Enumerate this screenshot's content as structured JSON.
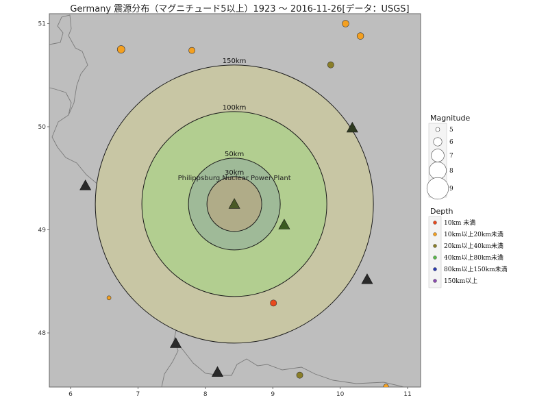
{
  "title": "Germany 震源分布（マグニチュード5以上）1923 〜 2016-11-26[データ：USGS]",
  "map": {
    "background_color": "#bebebe",
    "x_ticks": [
      {
        "value": 6,
        "label": "6"
      },
      {
        "value": 7,
        "label": "7"
      },
      {
        "value": 8,
        "label": "8"
      },
      {
        "value": 9,
        "label": "9"
      },
      {
        "value": 10,
        "label": "10"
      },
      {
        "value": 11,
        "label": "11"
      }
    ],
    "y_ticks": [
      {
        "value": 51,
        "label": "51"
      },
      {
        "value": 50,
        "label": "50"
      },
      {
        "value": 49,
        "label": "49"
      },
      {
        "value": 48,
        "label": "48"
      }
    ],
    "center": {
      "lon": 8.43,
      "lat": 49.25,
      "label": "Philippsburg Nuclear Power Plant"
    },
    "rings": [
      {
        "label": "150km",
        "fill": "#c8c6a4"
      },
      {
        "label": "100km",
        "fill": "#b2ce90"
      },
      {
        "label": "50km",
        "fill": "#9fba98"
      },
      {
        "label": "30km",
        "fill": "#b0ac88"
      }
    ],
    "quakes": [
      {
        "lon": 6.75,
        "lat": 50.75,
        "mag": 5.8,
        "depth_class": "10-20",
        "color": "#f4a020"
      },
      {
        "lon": 7.8,
        "lat": 50.74,
        "mag": 5.5,
        "depth_class": "10-20",
        "color": "#f4a020"
      },
      {
        "lon": 10.08,
        "lat": 51.0,
        "mag": 5.6,
        "depth_class": "10-20",
        "color": "#f4a020"
      },
      {
        "lon": 10.3,
        "lat": 50.88,
        "mag": 5.6,
        "depth_class": "10-20",
        "color": "#f4a020"
      },
      {
        "lon": 9.86,
        "lat": 50.6,
        "mag": 5.5,
        "depth_class": "20-40",
        "color": "#8a7e28"
      },
      {
        "lon": 6.57,
        "lat": 48.34,
        "mag": 5.0,
        "depth_class": "10-20",
        "color": "#f4a020"
      },
      {
        "lon": 9.01,
        "lat": 48.29,
        "mag": 5.5,
        "depth_class": "<10",
        "color": "#e84a1e"
      },
      {
        "lon": 9.4,
        "lat": 47.59,
        "mag": 5.5,
        "depth_class": "20-40",
        "color": "#8a7e28"
      },
      {
        "lon": 10.68,
        "lat": 47.48,
        "mag": 5.2,
        "depth_class": "10-20",
        "color": "#f4a020"
      }
    ],
    "plants": [
      {
        "lon": 8.43,
        "lat": 49.25,
        "color": "#4a5a26"
      },
      {
        "lon": 9.17,
        "lat": 49.05,
        "color": "#3a5a20"
      },
      {
        "lon": 10.18,
        "lat": 49.99,
        "color": "#2e3a20"
      },
      {
        "lon": 6.22,
        "lat": 49.43,
        "color": "#2a2a2a"
      },
      {
        "lon": 10.4,
        "lat": 48.52,
        "color": "#2a2a2a"
      },
      {
        "lon": 7.56,
        "lat": 47.9,
        "color": "#2a2a2a"
      },
      {
        "lon": 8.18,
        "lat": 47.62,
        "color": "#2a2a2a"
      }
    ]
  },
  "legend": {
    "magnitude_title": "Magnitude",
    "magnitudes": [
      {
        "value": 5,
        "label": "5"
      },
      {
        "value": 6,
        "label": "6"
      },
      {
        "value": 7,
        "label": "7"
      },
      {
        "value": 8,
        "label": "8"
      },
      {
        "value": 9,
        "label": "9"
      }
    ],
    "depth_title": "Depth",
    "depths": [
      {
        "label": "10km 未満",
        "color": "#e84a1e"
      },
      {
        "label": "10km以上20km未満",
        "color": "#f4a020"
      },
      {
        "label": "20km以上40km未満",
        "color": "#8a7e28"
      },
      {
        "label": "40km以上80km未満",
        "color": "#5ab64a"
      },
      {
        "label": "80km以上150km未満",
        "color": "#2a3ab0"
      },
      {
        "label": "150km以上",
        "color": "#8a4ab0"
      }
    ]
  }
}
